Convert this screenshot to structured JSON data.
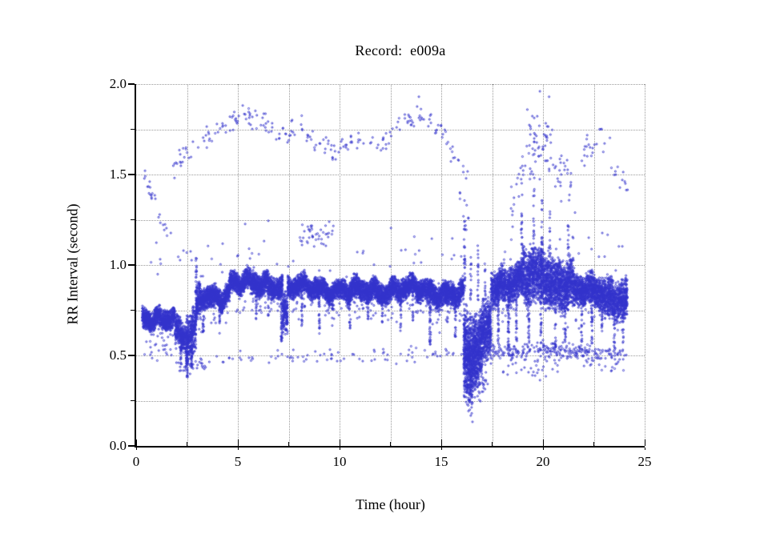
{
  "figure": {
    "background": "#ffffff"
  },
  "chart_data": {
    "type": "scatter",
    "title": "Record:  e009a",
    "xlabel": "Time (hour)",
    "ylabel": "RR Interval (second)",
    "xlim": [
      0,
      25
    ],
    "ylim": [
      0.0,
      2.0
    ],
    "grid": "dotted",
    "legend": "none",
    "point_color": "#3333cc",
    "grid_color": "#9a9a9a",
    "axis_color": "#000000",
    "x_major_ticks": [
      0,
      5,
      10,
      15,
      20,
      25
    ],
    "x_major_labels": [
      "0",
      "5",
      "10",
      "15",
      "20",
      "25"
    ],
    "x_minor_ticks": [
      2.5,
      7.5,
      12.5,
      17.5,
      22.5
    ],
    "y_major_ticks": [
      0,
      0.5,
      1.0,
      1.5,
      2.0
    ],
    "y_major_labels": [
      "0.0",
      "0.5",
      "1.0",
      "1.5",
      "2.0"
    ],
    "y_minor_ticks": [
      0.25,
      0.75,
      1.25,
      1.75
    ],
    "description": "24-hour RR-interval tachogram: dense main band near 0.7 s rising to ~0.85-0.9 s, episode of short noisy intervals near hour 16-17.5, noisy final section with secondary band near 0.5 s, sparse long-interval outliers arcing 1.4-1.95 s.",
    "seed": 20090,
    "wobble": [
      [
        0.02,
        7.1,
        0.0
      ],
      [
        0.013,
        2.3,
        1.7
      ],
      [
        0.009,
        13.0,
        0.5
      ]
    ],
    "band_segments": [
      [
        0.3,
        1.9,
        0.7,
        0.72,
        0.045,
        620
      ],
      [
        1.9,
        2.45,
        0.63,
        0.6,
        0.07,
        620
      ],
      [
        2.45,
        2.95,
        0.58,
        0.62,
        0.1,
        660
      ],
      [
        2.95,
        3.15,
        0.75,
        0.82,
        0.08,
        620
      ],
      [
        3.15,
        4.6,
        0.82,
        0.84,
        0.05,
        620
      ],
      [
        4.6,
        7.2,
        0.9,
        0.89,
        0.05,
        620
      ],
      [
        7.2,
        7.45,
        0.72,
        0.7,
        0.09,
        660
      ],
      [
        7.45,
        10.3,
        0.88,
        0.86,
        0.045,
        620
      ],
      [
        10.3,
        12.7,
        0.85,
        0.86,
        0.05,
        620
      ],
      [
        12.7,
        14.2,
        0.87,
        0.86,
        0.05,
        620
      ],
      [
        14.2,
        16.1,
        0.85,
        0.84,
        0.055,
        620
      ],
      [
        16.1,
        16.55,
        0.5,
        0.45,
        0.2,
        1400
      ],
      [
        16.55,
        17.0,
        0.52,
        0.55,
        0.16,
        1200
      ],
      [
        17.0,
        17.45,
        0.6,
        0.7,
        0.14,
        900
      ],
      [
        17.45,
        19.0,
        0.88,
        0.9,
        0.08,
        700
      ],
      [
        19.0,
        20.3,
        0.93,
        0.95,
        0.13,
        760
      ],
      [
        20.3,
        21.5,
        0.9,
        0.88,
        0.11,
        760
      ],
      [
        21.5,
        23.0,
        0.85,
        0.86,
        0.07,
        660
      ],
      [
        23.0,
        24.15,
        0.83,
        0.8,
        0.09,
        660
      ]
    ],
    "streaks": [
      [
        2.2,
        0.06,
        0.62,
        0.45,
        25
      ],
      [
        2.5,
        0.09,
        0.62,
        0.38,
        50
      ],
      [
        2.72,
        0.06,
        0.6,
        0.42,
        30
      ],
      [
        2.95,
        0.06,
        1.05,
        0.7,
        35
      ],
      [
        3.3,
        0.05,
        0.8,
        0.62,
        18
      ],
      [
        4.1,
        0.04,
        0.8,
        0.68,
        12
      ],
      [
        5.9,
        0.05,
        0.88,
        0.7,
        20
      ],
      [
        6.5,
        0.04,
        0.88,
        0.72,
        15
      ],
      [
        7.15,
        0.07,
        0.86,
        0.57,
        45
      ],
      [
        8.15,
        0.05,
        0.85,
        0.66,
        20
      ],
      [
        9.0,
        0.05,
        0.85,
        0.62,
        25
      ],
      [
        9.65,
        0.04,
        0.85,
        0.66,
        15
      ],
      [
        10.5,
        0.05,
        0.84,
        0.65,
        22
      ],
      [
        11.4,
        0.04,
        0.84,
        0.7,
        12
      ],
      [
        12.1,
        0.04,
        0.84,
        0.68,
        14
      ],
      [
        13.0,
        0.05,
        0.85,
        0.62,
        22
      ],
      [
        13.6,
        0.04,
        0.85,
        0.68,
        14
      ],
      [
        14.45,
        0.06,
        0.84,
        0.56,
        40
      ],
      [
        15.3,
        0.04,
        0.83,
        0.68,
        12
      ],
      [
        15.7,
        0.05,
        0.83,
        0.6,
        22
      ],
      [
        16.15,
        0.07,
        1.25,
        0.85,
        30
      ],
      [
        16.45,
        0.05,
        1.05,
        0.8,
        15
      ],
      [
        16.8,
        0.05,
        1.12,
        0.8,
        18
      ],
      [
        17.15,
        0.05,
        1.05,
        0.8,
        12
      ],
      [
        17.8,
        0.06,
        0.86,
        0.52,
        35
      ],
      [
        18.3,
        0.06,
        0.86,
        0.5,
        35
      ],
      [
        18.7,
        0.05,
        0.88,
        0.58,
        25
      ],
      [
        18.95,
        0.05,
        1.3,
        0.95,
        20
      ],
      [
        19.3,
        0.06,
        0.9,
        0.55,
        30
      ],
      [
        19.55,
        0.06,
        1.42,
        0.95,
        25
      ],
      [
        19.95,
        0.07,
        1.38,
        0.95,
        30
      ],
      [
        19.9,
        0.05,
        0.9,
        0.52,
        28
      ],
      [
        20.35,
        0.05,
        1.3,
        0.92,
        20
      ],
      [
        20.6,
        0.06,
        0.88,
        0.52,
        30
      ],
      [
        21.1,
        0.05,
        0.86,
        0.56,
        22
      ],
      [
        21.25,
        0.05,
        1.22,
        0.9,
        15
      ],
      [
        21.9,
        0.05,
        0.85,
        0.55,
        22
      ],
      [
        22.4,
        0.06,
        0.85,
        0.52,
        28
      ],
      [
        22.9,
        0.05,
        0.85,
        0.58,
        20
      ],
      [
        23.5,
        0.06,
        0.83,
        0.52,
        26
      ],
      [
        23.95,
        0.05,
        0.82,
        0.55,
        20
      ]
    ],
    "patches": [
      [
        0.35,
        0.95,
        1.5,
        1.36,
        0.04,
        14
      ],
      [
        1.05,
        1.75,
        1.28,
        1.18,
        0.05,
        8
      ],
      [
        1.8,
        3.4,
        1.55,
        1.68,
        0.06,
        22
      ],
      [
        3.4,
        5.2,
        1.7,
        1.82,
        0.05,
        30
      ],
      [
        5.2,
        7.0,
        1.84,
        1.74,
        0.05,
        30
      ],
      [
        7.0,
        8.2,
        1.7,
        1.8,
        0.06,
        20
      ],
      [
        8.2,
        9.9,
        1.73,
        1.62,
        0.05,
        26
      ],
      [
        8.0,
        9.7,
        1.18,
        1.18,
        0.07,
        40
      ],
      [
        9.9,
        11.4,
        1.66,
        1.7,
        0.05,
        20
      ],
      [
        11.4,
        12.6,
        1.63,
        1.72,
        0.05,
        16
      ],
      [
        12.6,
        14.2,
        1.75,
        1.84,
        0.05,
        26
      ],
      [
        14.2,
        15.4,
        1.82,
        1.7,
        0.05,
        18
      ],
      [
        15.4,
        16.3,
        1.65,
        1.5,
        0.07,
        12
      ],
      [
        15.9,
        16.4,
        1.35,
        1.25,
        0.1,
        10
      ],
      [
        18.4,
        19.2,
        1.3,
        1.6,
        0.12,
        20
      ],
      [
        19.2,
        20.6,
        1.65,
        1.7,
        0.18,
        60
      ],
      [
        20.6,
        21.6,
        1.55,
        1.45,
        0.15,
        25
      ],
      [
        21.8,
        23.3,
        1.62,
        1.7,
        0.08,
        22
      ],
      [
        23.3,
        24.2,
        1.55,
        1.42,
        0.07,
        10
      ],
      [
        3.0,
        16.0,
        1.05,
        1.05,
        0.15,
        45
      ],
      [
        0.5,
        2.9,
        1.0,
        1.05,
        0.12,
        12
      ],
      [
        17.5,
        24.0,
        1.05,
        1.1,
        0.12,
        35
      ],
      [
        0.4,
        1.9,
        0.52,
        0.5,
        0.05,
        10
      ],
      [
        1.9,
        3.6,
        0.44,
        0.46,
        0.05,
        30
      ],
      [
        3.6,
        7.0,
        0.48,
        0.5,
        0.04,
        18
      ],
      [
        7.0,
        12.6,
        0.5,
        0.5,
        0.04,
        40
      ],
      [
        12.6,
        16.0,
        0.5,
        0.52,
        0.05,
        25
      ],
      [
        16.1,
        17.2,
        0.31,
        0.35,
        0.08,
        30
      ],
      [
        16.9,
        19.0,
        0.52,
        0.52,
        0.04,
        80
      ],
      [
        19.0,
        21.5,
        0.52,
        0.52,
        0.05,
        110
      ],
      [
        21.5,
        24.1,
        0.52,
        0.51,
        0.04,
        90
      ],
      [
        18.0,
        21.0,
        0.41,
        0.42,
        0.05,
        25
      ],
      [
        22.0,
        24.0,
        0.44,
        0.45,
        0.04,
        18
      ],
      [
        16.25,
        16.55,
        0.22,
        0.25,
        0.04,
        8
      ],
      [
        17.0,
        17.3,
        0.33,
        0.35,
        0.04,
        6
      ]
    ],
    "extra_points": [
      [
        13.9,
        1.93
      ],
      [
        19.85,
        1.96
      ],
      [
        20.3,
        1.93
      ],
      [
        0.45,
        1.49
      ],
      [
        24.05,
        1.45
      ],
      [
        23.9,
        1.47
      ],
      [
        16.5,
        0.18
      ],
      [
        16.4,
        0.2
      ],
      [
        17.05,
        0.3
      ]
    ]
  }
}
